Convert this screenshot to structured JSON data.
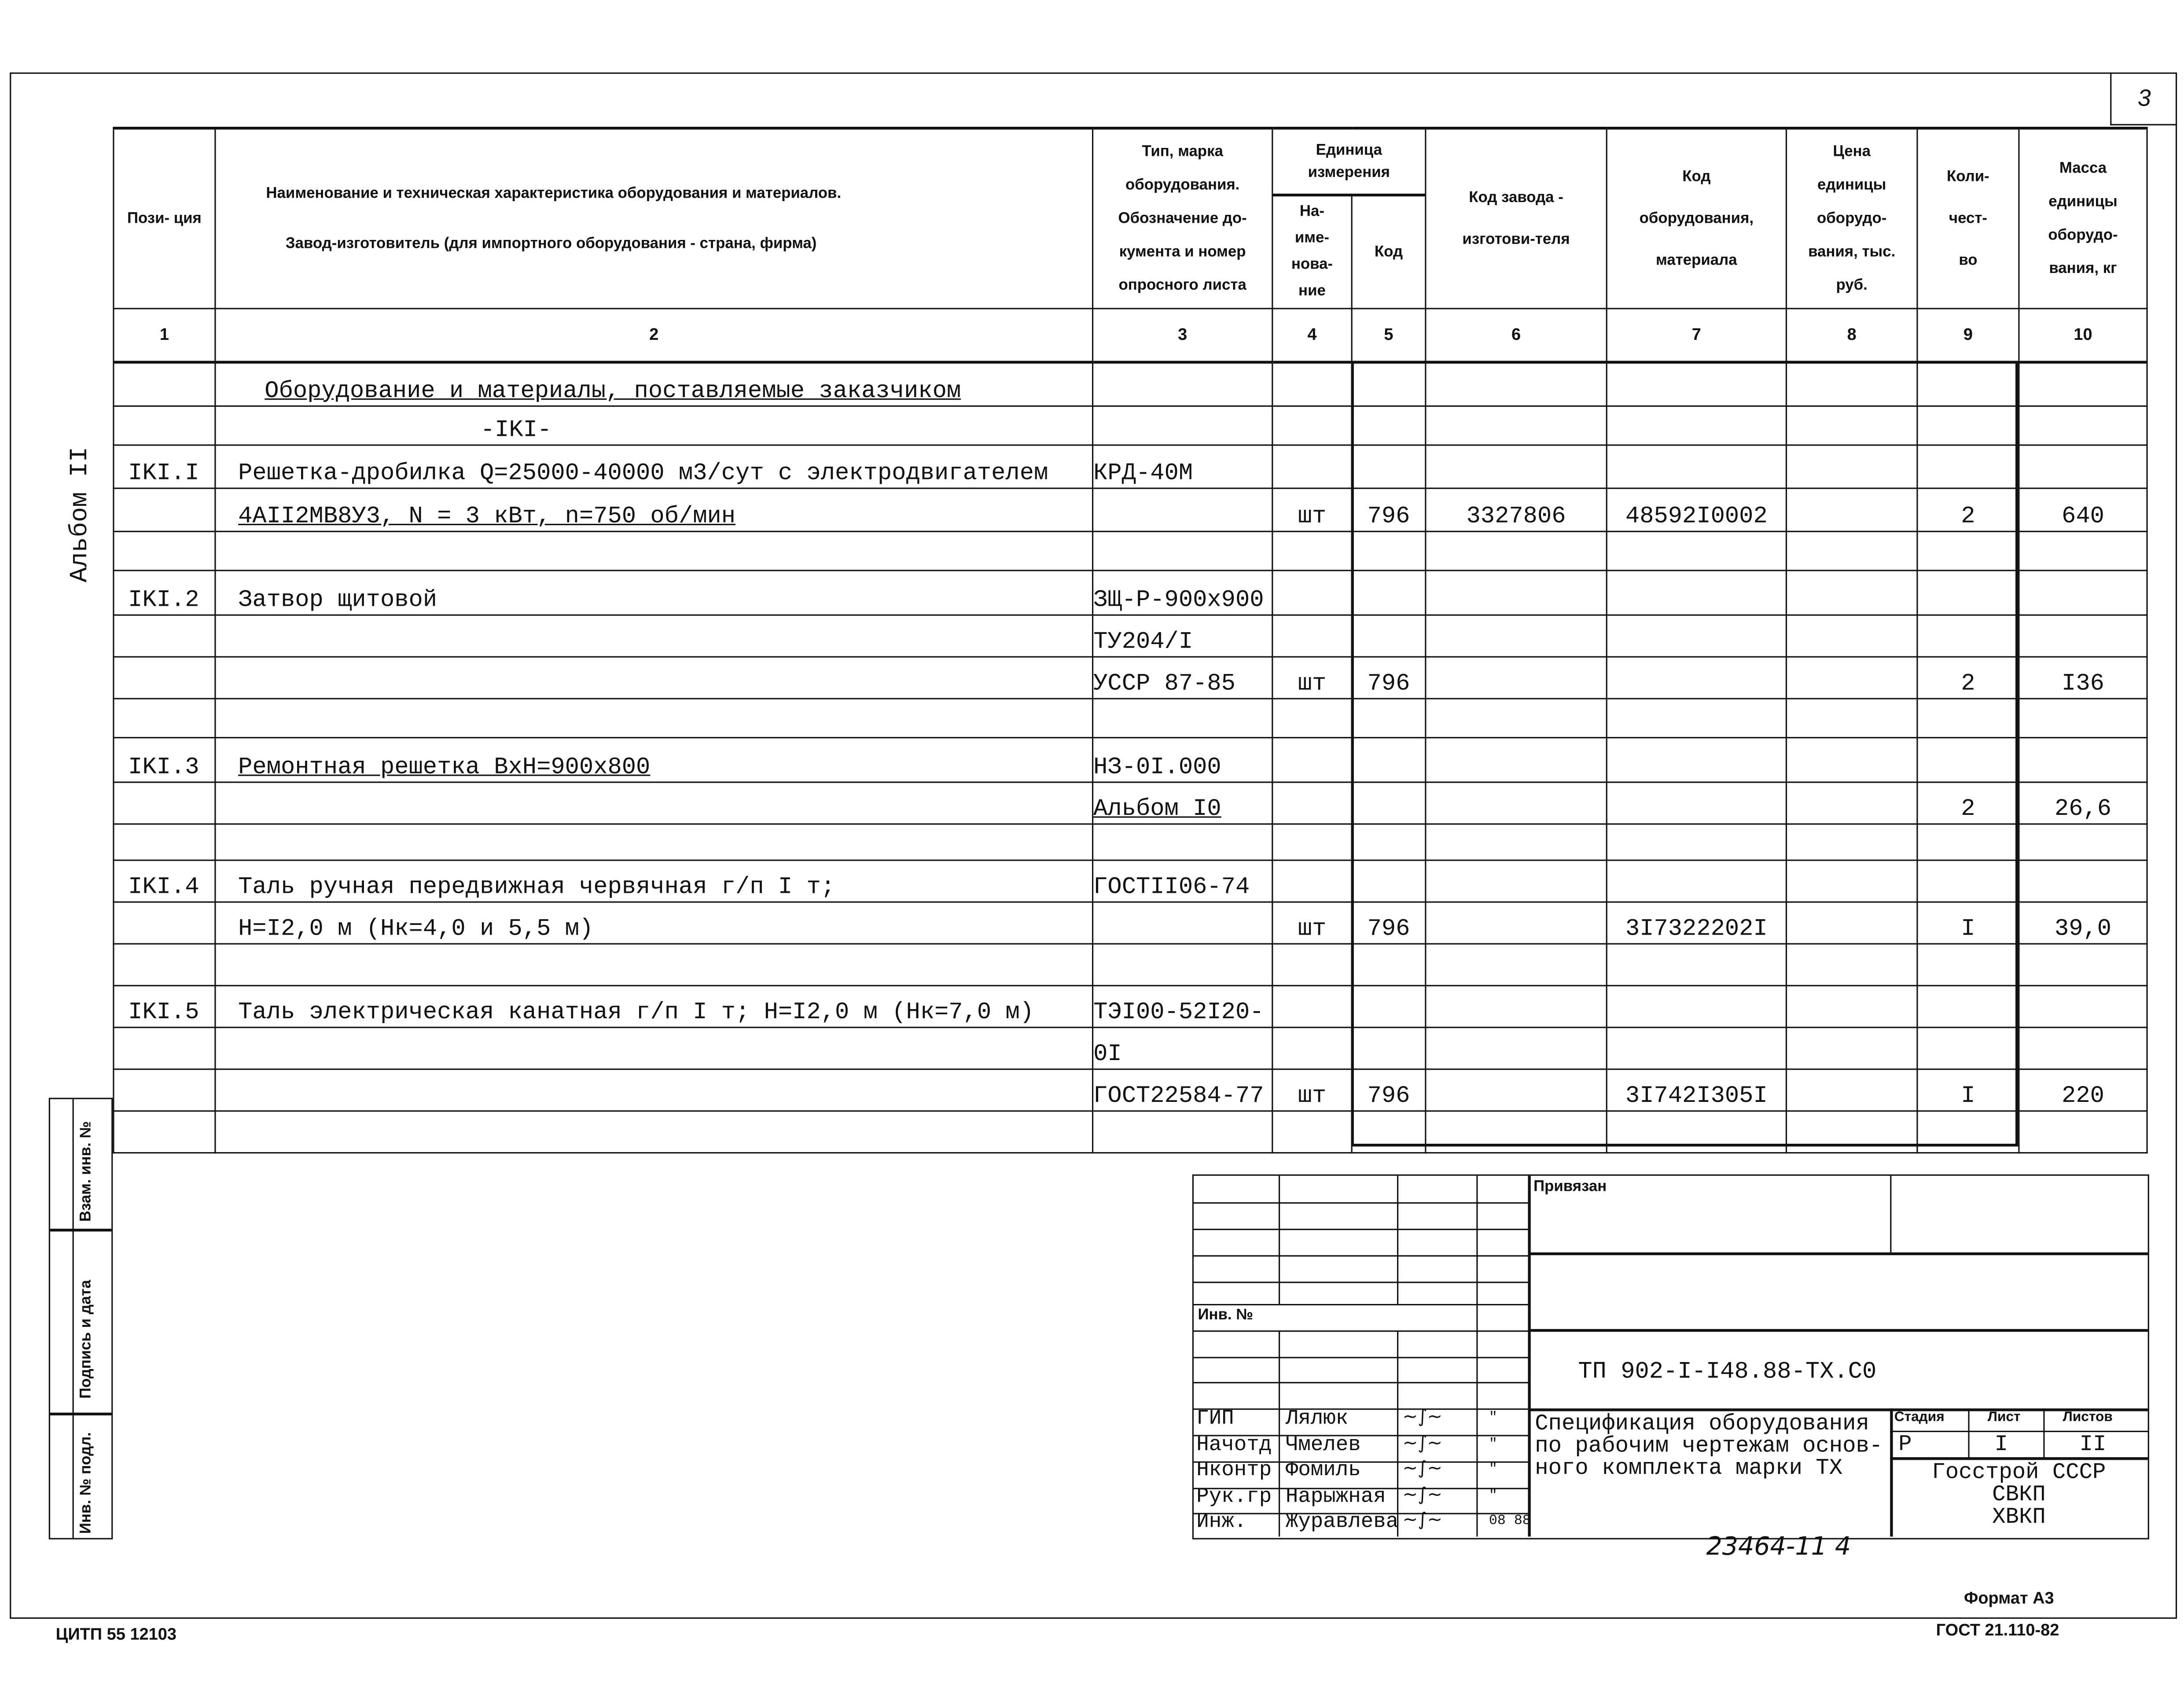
{
  "page_number": "3",
  "side_label": "Альбом II",
  "header": {
    "col1": "Пози-\nция",
    "col2_line1": "Наименование и техническая характеристика  оборудования и материалов.",
    "col2_line2": "Завод-изготовитель  (для импортного оборудования -  страна, фирма)",
    "col3": "Тип,  марка оборудования. Обозначение до-кумента и номер опросного листа",
    "col45": "Единица измерения",
    "col4": "На-име-нова-ние",
    "col5": "Код",
    "col6": "Код завода - изготови-теля",
    "col7": "Код оборудования, материала",
    "col8": "Цена единицы оборудо-вания, тыс. руб.",
    "col9": "Коли-чест-во",
    "col10": "Масса единицы оборудо-вания, кг",
    "numbers": [
      "1",
      "2",
      "3",
      "4",
      "5",
      "6",
      "7",
      "8",
      "9",
      "10"
    ]
  },
  "rows": [
    {
      "pos": "",
      "name": "Оборудование и материалы, поставляемые заказчиком",
      "type": "",
      "unit": "",
      "code": "",
      "plant": "",
      "eq": "",
      "price": "",
      "qty": "",
      "mass": "",
      "underline": true,
      "indent": true
    },
    {
      "pos": "",
      "name": "-IKI-",
      "type": "",
      "unit": "",
      "code": "",
      "plant": "",
      "eq": "",
      "price": "",
      "qty": "",
      "mass": "",
      "center": true
    },
    {
      "pos": "IKI.I",
      "name": "Решетка-дробилка  Q=25000-40000 м3/сут с электродвигателем",
      "type": "КРД-40М",
      "unit": "",
      "code": "",
      "plant": "",
      "eq": "",
      "price": "",
      "qty": "",
      "mass": ""
    },
    {
      "pos": "",
      "name": "4АII2МВ8У3, N = 3 кВт, n=750 об/мин",
      "type": "",
      "unit": "шт",
      "code": "796",
      "plant": "3327806",
      "eq": "48592I0002",
      "price": "",
      "qty": "2",
      "mass": "640",
      "underline": true
    },
    {
      "pos": "",
      "name": "",
      "type": "",
      "unit": "",
      "code": "",
      "plant": "",
      "eq": "",
      "price": "",
      "qty": "",
      "mass": ""
    },
    {
      "pos": "IKI.2",
      "name": "Затвор щитовой",
      "type": "ЗЩ-Р-900х900",
      "unit": "",
      "code": "",
      "plant": "",
      "eq": "",
      "price": "",
      "qty": "",
      "mass": ""
    },
    {
      "pos": "",
      "name": "",
      "type": "ТУ204/I",
      "unit": "",
      "code": "",
      "plant": "",
      "eq": "",
      "price": "",
      "qty": "",
      "mass": ""
    },
    {
      "pos": "",
      "name": "",
      "type": "УССР 87-85",
      "unit": "шт",
      "code": "796",
      "plant": "",
      "eq": "",
      "price": "",
      "qty": "2",
      "mass": "I36"
    },
    {
      "pos": "",
      "name": "",
      "type": "",
      "unit": "",
      "code": "",
      "plant": "",
      "eq": "",
      "price": "",
      "qty": "",
      "mass": ""
    },
    {
      "pos": "IKI.3",
      "name": "Ремонтная решетка ВхН=900х800",
      "type": "НЗ-0I.000",
      "unit": "",
      "code": "",
      "plant": "",
      "eq": "",
      "price": "",
      "qty": "",
      "mass": "",
      "underline": true
    },
    {
      "pos": "",
      "name": "",
      "type": "Альбом I0",
      "unit": "",
      "code": "",
      "plant": "",
      "eq": "",
      "price": "",
      "qty": "2",
      "mass": "26,6"
    },
    {
      "pos": "",
      "name": "",
      "type": "",
      "unit": "",
      "code": "",
      "plant": "",
      "eq": "",
      "price": "",
      "qty": "",
      "mass": ""
    },
    {
      "pos": "IKI.4",
      "name": "Таль ручная передвижная червячная г/п I т;",
      "type": "ГОСТII06-74",
      "unit": "",
      "code": "",
      "plant": "",
      "eq": "",
      "price": "",
      "qty": "",
      "mass": ""
    },
    {
      "pos": "",
      "name": "Н=I2,0 м (Нк=4,0 и 5,5 м)",
      "type": "",
      "unit": "шт",
      "code": "796",
      "plant": "",
      "eq": "3I7322202I",
      "price": "",
      "qty": "I",
      "mass": "39,0"
    },
    {
      "pos": "",
      "name": "",
      "type": "",
      "unit": "",
      "code": "",
      "plant": "",
      "eq": "",
      "price": "",
      "qty": "",
      "mass": ""
    },
    {
      "pos": "IKI.5",
      "name": "Таль электрическая канатная г/п I т; Н=I2,0 м (Нк=7,0 м)",
      "type": "ТЭI00-52I20-",
      "unit": "",
      "code": "",
      "plant": "",
      "eq": "",
      "price": "",
      "qty": "",
      "mass": ""
    },
    {
      "pos": "",
      "name": "",
      "type": "0I",
      "unit": "",
      "code": "",
      "plant": "",
      "eq": "",
      "price": "",
      "qty": "",
      "mass": ""
    },
    {
      "pos": "",
      "name": "",
      "type": "ГОСТ22584-77",
      "unit": "шт",
      "code": "796",
      "plant": "",
      "eq": "3I742I305I",
      "price": "",
      "qty": "I",
      "mass": "220"
    },
    {
      "pos": "",
      "name": "",
      "type": "",
      "unit": "",
      "code": "",
      "plant": "",
      "eq": "",
      "price": "",
      "qty": "",
      "mass": ""
    }
  ],
  "side_stamp": {
    "replace_inv": "Взам. инв. №",
    "sign_date": "Подпись и дата",
    "inv_orig": "Инв. № подл."
  },
  "title_block": {
    "bound_label": "Привязан",
    "inv_label": "Инв. №",
    "doc_code": "ТП 902-I-I48.88-ТХ.С0",
    "title": [
      "Спецификация оборудования",
      "по рабочим чертежам основ-",
      "ного комплекта марки ТХ"
    ],
    "stage_label": "Стадия",
    "sheet_label": "Лист",
    "sheets_label": "Листов",
    "stage": "Р",
    "sheet": "I",
    "sheets": "II",
    "org": [
      "Госстрой СССР",
      "СВКП",
      "ХВКП"
    ],
    "signers": [
      {
        "role": "ГИП",
        "name": "Лялюк",
        "date": "\""
      },
      {
        "role": "Начотд",
        "name": "Чмелев",
        "date": "\""
      },
      {
        "role": "Нконтр",
        "name": "Фомиль",
        "date": "\""
      },
      {
        "role": "Рук.гр",
        "name": "Нарыжная",
        "date": "\""
      },
      {
        "role": "Инж.",
        "name": "Журавлева",
        "date": "08 88"
      }
    ]
  },
  "handwritten_number": "23464-11    4",
  "format": "Формат А3",
  "standard": "ГОСТ 21.110-82",
  "printer": "ЦИТП  55 12103"
}
